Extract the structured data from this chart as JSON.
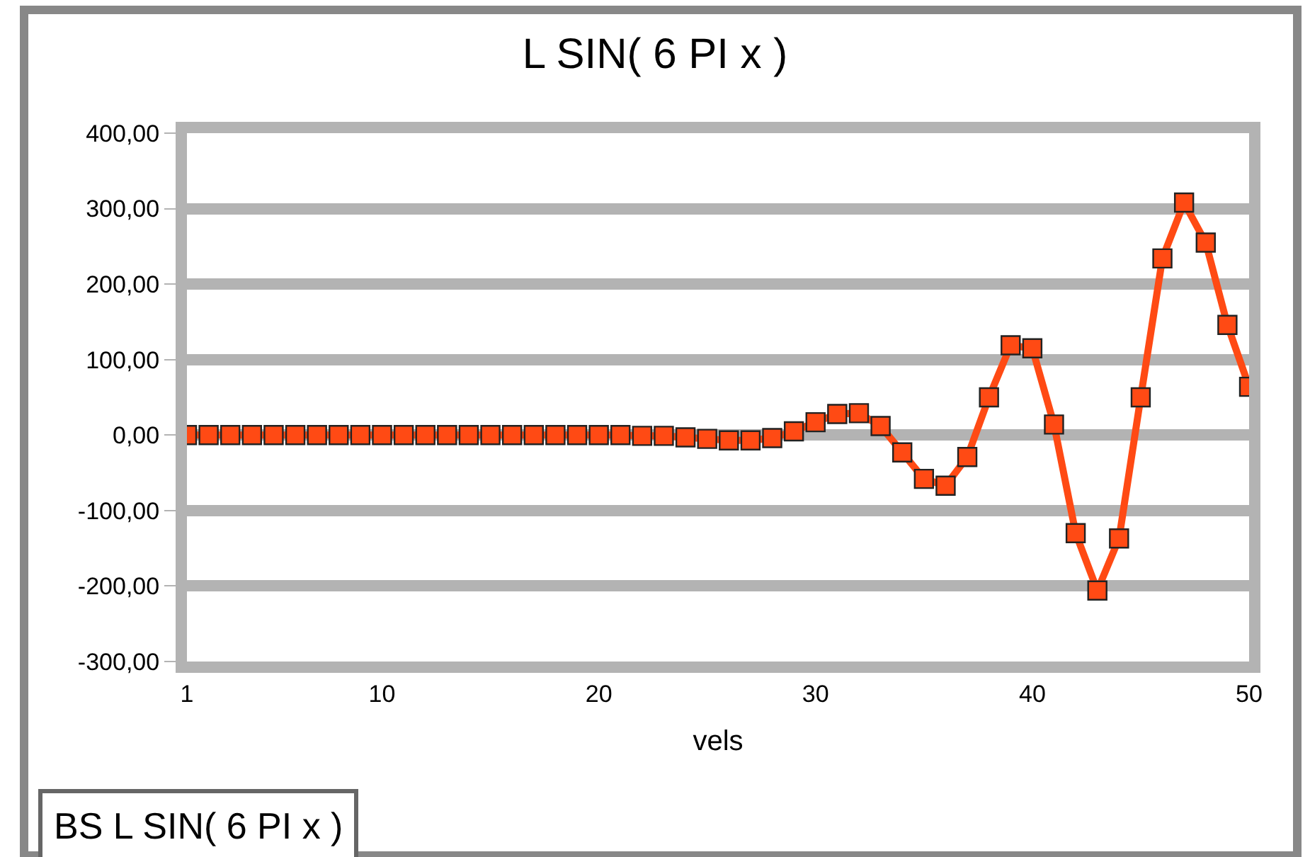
{
  "chart_data": {
    "type": "line",
    "title": "L SIN( 6 PI x )",
    "xlabel": "vels",
    "x": [
      1,
      2,
      3,
      4,
      5,
      6,
      7,
      8,
      9,
      10,
      11,
      12,
      13,
      14,
      15,
      16,
      17,
      18,
      19,
      20,
      21,
      22,
      23,
      24,
      25,
      26,
      27,
      28,
      29,
      30,
      31,
      32,
      33,
      34,
      35,
      36,
      37,
      38,
      39,
      40,
      41,
      42,
      43,
      44,
      45,
      46,
      47,
      48,
      49,
      50
    ],
    "series": [
      {
        "color": "#ff4a14",
        "values": [
          0,
          0,
          0,
          0,
          0,
          0,
          0,
          0,
          0,
          0,
          0,
          0,
          0,
          0,
          0,
          0,
          0,
          0,
          0,
          0,
          0,
          -1,
          -1,
          -3,
          -5,
          -7,
          -7,
          -4,
          5,
          17,
          28,
          29,
          12,
          -23,
          -58,
          -67,
          -29,
          50,
          119,
          115,
          14,
          -130,
          -206,
          -137,
          50,
          234,
          308,
          255,
          146,
          64
        ]
      }
    ],
    "xlim": [
      1,
      50
    ],
    "xticks": [
      1,
      10,
      20,
      30,
      40,
      50
    ],
    "ylim": [
      -300,
      400
    ],
    "yticks": [
      {
        "value": -300,
        "label": "-300,00"
      },
      {
        "value": -200,
        "label": "-200,00"
      },
      {
        "value": -100,
        "label": "-100,00"
      },
      {
        "value": 0,
        "label": "0,00"
      },
      {
        "value": 100,
        "label": "100,00"
      },
      {
        "value": 200,
        "label": "200,00"
      },
      {
        "value": 300,
        "label": "300,00"
      },
      {
        "value": 400,
        "label": "400,00"
      }
    ],
    "grid": "y",
    "marker": "square",
    "line_style": "solid",
    "annotations": [
      "BS L SIN( 6 PI x )"
    ]
  }
}
